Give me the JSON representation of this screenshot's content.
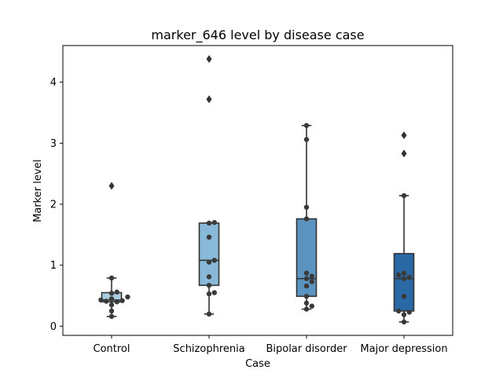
{
  "chart_data": {
    "type": "box",
    "title": "marker_646 level by disease case",
    "xlabel": "Case",
    "ylabel": "Marker level",
    "ylim": [
      -0.15,
      4.6
    ],
    "yticks": [
      0,
      1,
      2,
      3,
      4
    ],
    "grid": false,
    "categories": [
      "Control",
      "Schizophrenia",
      "Bipolar disorder",
      "Major depression"
    ],
    "box_colors": [
      "#a9cce3",
      "#89b9d8",
      "#5a93bf",
      "#2a69a5"
    ],
    "point_color": "#3a3a3a",
    "boxes": [
      {
        "q1": 0.4,
        "median": 0.43,
        "q3": 0.55,
        "whisker_low": 0.16,
        "whisker_high": 0.79,
        "outliers": [
          2.3
        ]
      },
      {
        "q1": 0.67,
        "median": 1.08,
        "q3": 1.69,
        "whisker_low": 0.2,
        "whisker_high": 1.69,
        "outliers": [
          3.72,
          4.38
        ]
      },
      {
        "q1": 0.49,
        "median": 0.78,
        "q3": 1.76,
        "whisker_low": 0.28,
        "whisker_high": 3.29,
        "outliers": []
      },
      {
        "q1": 0.25,
        "median": 0.78,
        "q3": 1.19,
        "whisker_low": 0.07,
        "whisker_high": 2.14,
        "outliers": [
          2.83,
          3.13
        ]
      }
    ],
    "points": [
      [
        0.16,
        0.25,
        0.35,
        0.4,
        0.41,
        0.42,
        0.43,
        0.45,
        0.48,
        0.54,
        0.56,
        0.79
      ],
      [
        0.2,
        0.53,
        0.55,
        0.67,
        0.81,
        1.05,
        1.08,
        1.46,
        1.69,
        1.7
      ],
      [
        0.28,
        0.33,
        0.38,
        0.49,
        0.66,
        0.73,
        0.78,
        0.82,
        0.87,
        1.76,
        1.95,
        3.06,
        3.29
      ],
      [
        0.07,
        0.19,
        0.23,
        0.25,
        0.49,
        0.78,
        0.8,
        0.84,
        0.87,
        2.14
      ]
    ]
  }
}
